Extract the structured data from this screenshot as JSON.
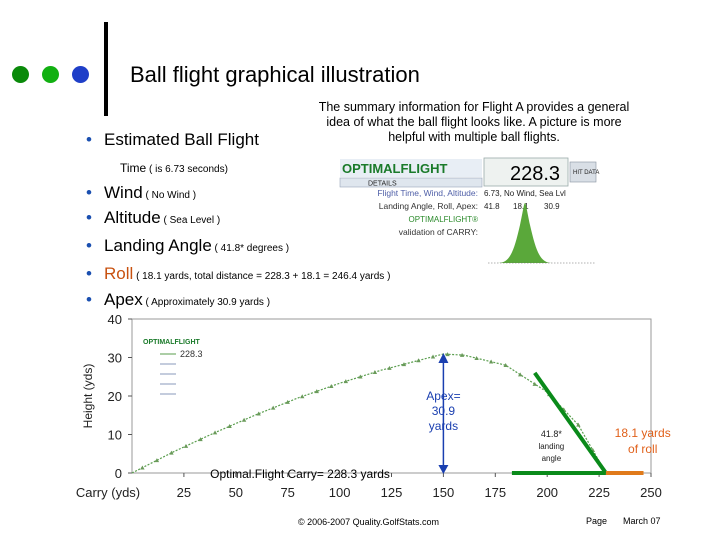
{
  "slide": {
    "title": "Ball flight graphical illustration",
    "summary": "The summary information for Flight A provides a general idea of what the ball flight looks like.  A picture is more helpful with multiple ball flights.",
    "dot_colors": [
      "#0a8a0a",
      "#12b012",
      "#1f3fc8"
    ],
    "accent": "#1a4fb0",
    "bullets": [
      {
        "main": "Estimated Ball Flight",
        "sub": "Time",
        "detail": " ( is 6.73 seconds)"
      },
      {
        "main": "Wind",
        "detail": " ( No Wind )"
      },
      {
        "main": "Altitude",
        "detail": " ( Sea Level )"
      },
      {
        "main": "Landing Angle",
        "detail": " ( 41.8* degrees )"
      },
      {
        "main": "Roll",
        "detail": " ( 18.1 yards, total distance = 228.3 + 18.1 = 246.4 yards )"
      },
      {
        "main": "Apex",
        "detail": "  ( Approximately 30.9 yards )"
      }
    ],
    "footer": {
      "copyright": "© 2006-2007 Quality.GolfStats.com",
      "page": "Page",
      "date": "March 07"
    }
  },
  "panel": {
    "logo": "OPTIMALFLIGHT",
    "tab": "DETAILS",
    "big_value": "228.3",
    "hit_label": "HIT DATA",
    "rows": [
      {
        "label": "Flight Time, Wind, Altitude:",
        "value": "6.73, No Wind, Sea Lvl"
      },
      {
        "label": "Landing Angle, Roll, Apex:",
        "values": [
          "41.8",
          "18.1",
          "30.9"
        ]
      },
      {
        "label": "OPTIMALFLIGHT®",
        "value": ""
      },
      {
        "label": "validation of CARRY:",
        "value": ""
      }
    ]
  },
  "chart_data": {
    "type": "line",
    "ylabel": "Height (yds)",
    "xlabel": "Carry (yds)",
    "xlim": [
      0,
      250
    ],
    "ylim": [
      0,
      40
    ],
    "xticks": [
      "25",
      "50",
      "75",
      "100",
      "125",
      "150",
      "175",
      "200",
      "225",
      "250"
    ],
    "yticks": [
      "0",
      "10",
      "20",
      "30",
      "40"
    ],
    "series": [
      {
        "name": "228.3",
        "symbol": "△",
        "x": [
          0,
          20,
          40,
          60,
          80,
          100,
          120,
          140,
          150,
          160,
          180,
          200,
          215,
          228.3
        ],
        "y": [
          0,
          5.5,
          10.5,
          15.2,
          19.5,
          23.3,
          26.7,
          29.5,
          30.9,
          30.6,
          28.0,
          21.0,
          12.5,
          0
        ]
      }
    ],
    "legend": {
      "logo": "OPTIMALFLIGHT",
      "entries": [
        "228.3",
        "",
        "",
        "",
        ""
      ],
      "placement": "top-left"
    },
    "roll": {
      "from": 228.3,
      "to": 246.4
    },
    "apex_x": 150,
    "annotations": {
      "apex": [
        "Apex=",
        "30.9",
        "yards"
      ],
      "landing": [
        "41.8*",
        "landing",
        "angle"
      ],
      "roll": [
        "18.1 yards",
        "of roll"
      ],
      "carry": "Optimal.Flight Carry= 228.3 yards"
    }
  }
}
